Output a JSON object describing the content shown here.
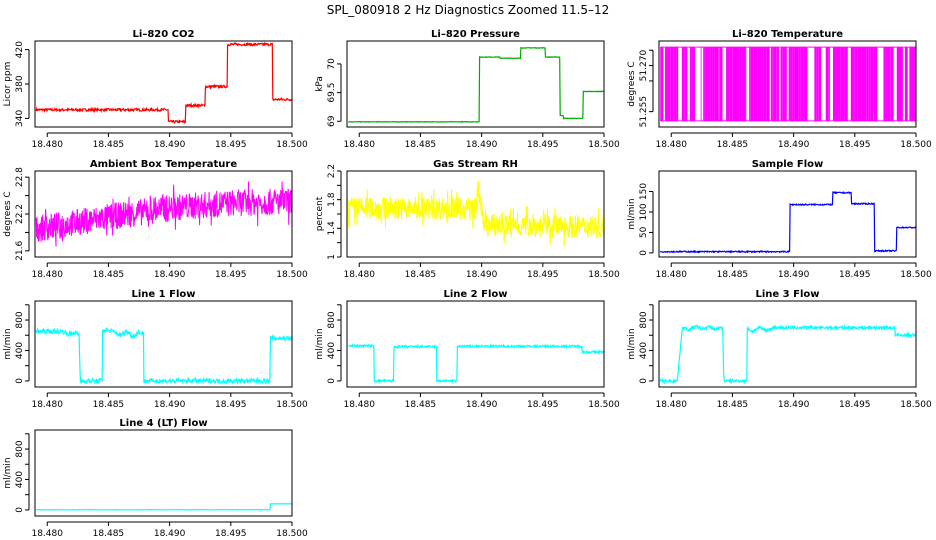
{
  "figure": {
    "title": "SPL_080918  2 Hz Diagnostics Zoomed 11.5–12",
    "x_ticks": [
      "18.480",
      "18.485",
      "18.490",
      "18.495",
      "18.500"
    ]
  },
  "chart_data": [
    {
      "type": "line",
      "title": "Li–820 CO2",
      "ylabel": "Licor ppm",
      "color": "#ff0000",
      "xlim": [
        18.479,
        18.5
      ],
      "ylim": [
        330,
        430
      ],
      "yticks": [
        340,
        380,
        420
      ],
      "series": [
        {
          "x": [
            18.479,
            18.4899,
            18.4899,
            18.4913,
            18.4913,
            18.4929,
            18.4929,
            18.4947,
            18.4947,
            18.4984,
            18.4984,
            18.5
          ],
          "y": [
            350,
            350,
            336,
            336,
            355,
            355,
            377,
            377,
            426,
            426,
            362,
            362
          ]
        }
      ],
      "noise": 1.5
    },
    {
      "type": "line",
      "title": "Li–820 Pressure",
      "ylabel": "kPa",
      "color": "#00aa00",
      "xlim": [
        18.479,
        18.5
      ],
      "ylim": [
        68.9,
        70.4
      ],
      "yticks": [
        69.0,
        69.5,
        70.0
      ],
      "series": [
        {
          "x": [
            18.479,
            18.4898,
            18.4898,
            18.4915,
            18.4915,
            18.4932,
            18.4932,
            18.4952,
            18.4952,
            18.4964,
            18.4964,
            18.4967,
            18.4967,
            18.4983,
            18.4983,
            18.5
          ],
          "y": [
            68.99,
            68.99,
            70.12,
            70.12,
            70.1,
            70.1,
            70.28,
            70.28,
            70.12,
            70.12,
            69.1,
            69.1,
            69.05,
            69.05,
            69.52,
            69.52
          ]
        }
      ],
      "noise": 0.004
    },
    {
      "type": "spikes",
      "title": "Li–820 Temperature",
      "ylabel": "degrees C",
      "color": "#ff00ff",
      "xlim": [
        18.479,
        18.5
      ],
      "ylim": [
        51.25,
        51.278
      ],
      "yticks": [
        51.255,
        51.27
      ],
      "ytick_labels": [
        "51.255",
        "51.270"
      ],
      "ytick_extra": [
        51.265,
        51.275
      ],
      "range": [
        51.252,
        51.276
      ]
    },
    {
      "type": "noise",
      "title": "Ambient Box Temperature",
      "ylabel": "degrees C",
      "color": "#ff00ff",
      "xlim": [
        18.479,
        18.5
      ],
      "ylim": [
        21.5,
        22.9
      ],
      "yticks": [
        21.6,
        22.2,
        22.8
      ],
      "ytick_extra": [
        21.9,
        22.5
      ],
      "series": [
        {
          "x": [
            18.479,
            18.485,
            18.49,
            18.495,
            18.5
          ],
          "y": [
            21.95,
            22.15,
            22.3,
            22.38,
            22.4
          ]
        }
      ],
      "noise": 0.22
    },
    {
      "type": "noise",
      "title": "Gas Stream RH",
      "ylabel": "percent",
      "color": "#ffff00",
      "xlim": [
        18.479,
        18.5
      ],
      "ylim": [
        1.0,
        2.2
      ],
      "yticks": [
        1.0,
        1.4,
        1.8,
        2.2
      ],
      "ytick_extra": [
        1.2,
        1.6,
        2.0
      ],
      "series": [
        {
          "x": [
            18.479,
            18.4896,
            18.4897,
            18.49,
            18.4901,
            18.5
          ],
          "y": [
            1.68,
            1.68,
            2.0,
            1.7,
            1.45,
            1.42
          ]
        }
      ],
      "noise": 0.16
    },
    {
      "type": "line",
      "title": "Sample Flow",
      "ylabel": "ml/min",
      "color": "#0000ff",
      "xlim": [
        18.479,
        18.5
      ],
      "ylim": [
        -10,
        200
      ],
      "yticks": [
        0,
        50,
        100,
        150
      ],
      "series": [
        {
          "x": [
            18.479,
            18.4897,
            18.4897,
            18.4932,
            18.4932,
            18.4947,
            18.4947,
            18.4966,
            18.4966,
            18.4984,
            18.4984,
            18.5
          ],
          "y": [
            3,
            3,
            118,
            118,
            147,
            147,
            120,
            120,
            5,
            5,
            62,
            62
          ]
        }
      ],
      "noise": 1.5
    },
    {
      "type": "line",
      "title": "Line 1 Flow",
      "ylabel": "ml/min",
      "color": "#00ffff",
      "xlim": [
        18.479,
        18.5
      ],
      "ylim": [
        -80,
        1050
      ],
      "yticks": [
        0,
        400,
        800
      ],
      "ytick_extra": [
        200,
        600,
        1000
      ],
      "series": [
        {
          "x": [
            18.479,
            18.4813,
            18.4818,
            18.4823,
            18.4826,
            18.4827,
            18.4845,
            18.4845,
            18.4849,
            18.4855,
            18.486,
            18.4865,
            18.487,
            18.4875,
            18.4879,
            18.4879,
            18.4982,
            18.4982,
            18.5
          ],
          "y": [
            650,
            650,
            610,
            640,
            600,
            0,
            0,
            660,
            670,
            640,
            600,
            650,
            580,
            640,
            620,
            0,
            0,
            560,
            560
          ]
        }
      ],
      "noise": 30
    },
    {
      "type": "line",
      "title": "Line 2 Flow",
      "ylabel": "ml/min",
      "color": "#00ffff",
      "xlim": [
        18.479,
        18.5
      ],
      "ylim": [
        -80,
        1050
      ],
      "yticks": [
        0,
        400,
        800
      ],
      "ytick_extra": [
        200,
        600,
        1000
      ],
      "series": [
        {
          "x": [
            18.479,
            18.4812,
            18.4812,
            18.4828,
            18.4828,
            18.4863,
            18.4863,
            18.488,
            18.488,
            18.4982,
            18.4982,
            18.5
          ],
          "y": [
            460,
            460,
            0,
            0,
            450,
            450,
            0,
            0,
            455,
            455,
            380,
            380
          ]
        }
      ],
      "noise": 14
    },
    {
      "type": "line",
      "title": "Line 3 Flow",
      "ylabel": "ml/min",
      "color": "#00ffff",
      "xlim": [
        18.479,
        18.5
      ],
      "ylim": [
        -80,
        1050
      ],
      "yticks": [
        0,
        400,
        800
      ],
      "ytick_extra": [
        200,
        600,
        1000
      ],
      "series": [
        {
          "x": [
            18.479,
            18.4805,
            18.4809,
            18.4815,
            18.482,
            18.4825,
            18.483,
            18.4836,
            18.4842,
            18.4843,
            18.4862,
            18.4862,
            18.4866,
            18.4872,
            18.4878,
            18.4883,
            18.4983,
            18.4983,
            18.5
          ],
          "y": [
            0,
            0,
            700,
            670,
            720,
            680,
            710,
            680,
            700,
            0,
            0,
            700,
            650,
            700,
            660,
            700,
            700,
            600,
            600
          ]
        }
      ],
      "noise": 20
    },
    {
      "type": "line",
      "title": "Line 4 (LT) Flow",
      "ylabel": "ml/min",
      "color": "#00ffff",
      "xlim": [
        18.479,
        18.5
      ],
      "ylim": [
        -80,
        1050
      ],
      "yticks": [
        0,
        400,
        800
      ],
      "ytick_extra": [
        200,
        600,
        1000
      ],
      "series": [
        {
          "x": [
            18.479,
            18.4982,
            18.4982,
            18.5
          ],
          "y": [
            2,
            2,
            80,
            80
          ]
        }
      ],
      "noise": 2
    }
  ]
}
